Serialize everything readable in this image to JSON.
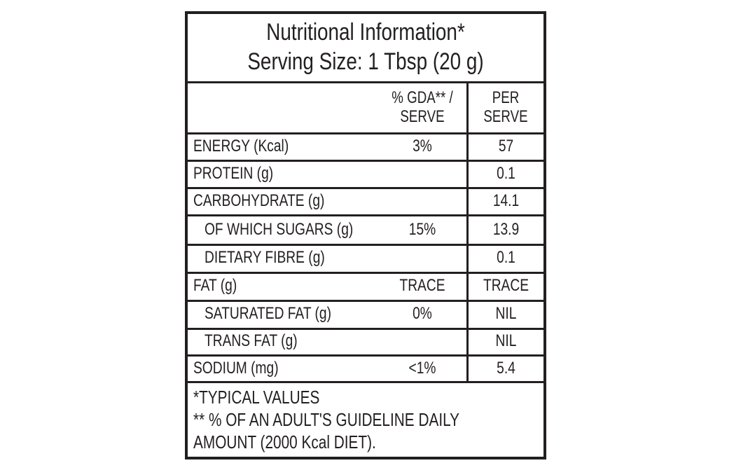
{
  "title": "Nutritional Information*",
  "serving_size": "Serving Size: 1 Tbsp (20 g)",
  "columns": {
    "gda_line1": "% GDA** /",
    "gda_line2": "SERVE",
    "per_line1": "PER",
    "per_line2": "SERVE"
  },
  "rows": [
    {
      "nutrient": "ENERGY (Kcal)",
      "gda": "3%",
      "per_serve": "57"
    },
    {
      "nutrient": "PROTEIN (g)",
      "gda": "",
      "per_serve": "0.1"
    },
    {
      "nutrient": "CARBOHYDRATE (g)",
      "gda": "",
      "per_serve": "14.1"
    },
    {
      "nutrient": "OF WHICH SUGARS (g)",
      "gda": "15%",
      "per_serve": "13.9"
    },
    {
      "nutrient": "DIETARY FIBRE (g)",
      "gda": "",
      "per_serve": "0.1"
    },
    {
      "nutrient": "FAT (g)",
      "gda": "TRACE",
      "per_serve": "TRACE"
    },
    {
      "nutrient": "SATURATED FAT (g)",
      "gda": "0%",
      "per_serve": "NIL"
    },
    {
      "nutrient": "TRANS FAT (g)",
      "gda": "",
      "per_serve": "NIL"
    },
    {
      "nutrient": "SODIUM (mg)",
      "gda": "<1%",
      "per_serve": "5.4"
    }
  ],
  "footnotes": {
    "line1": "*TYPICAL VALUES",
    "line2": "** % OF AN ADULT'S GUIDELINE DAILY",
    "line3": "AMOUNT (2000 Kcal DIET)."
  }
}
